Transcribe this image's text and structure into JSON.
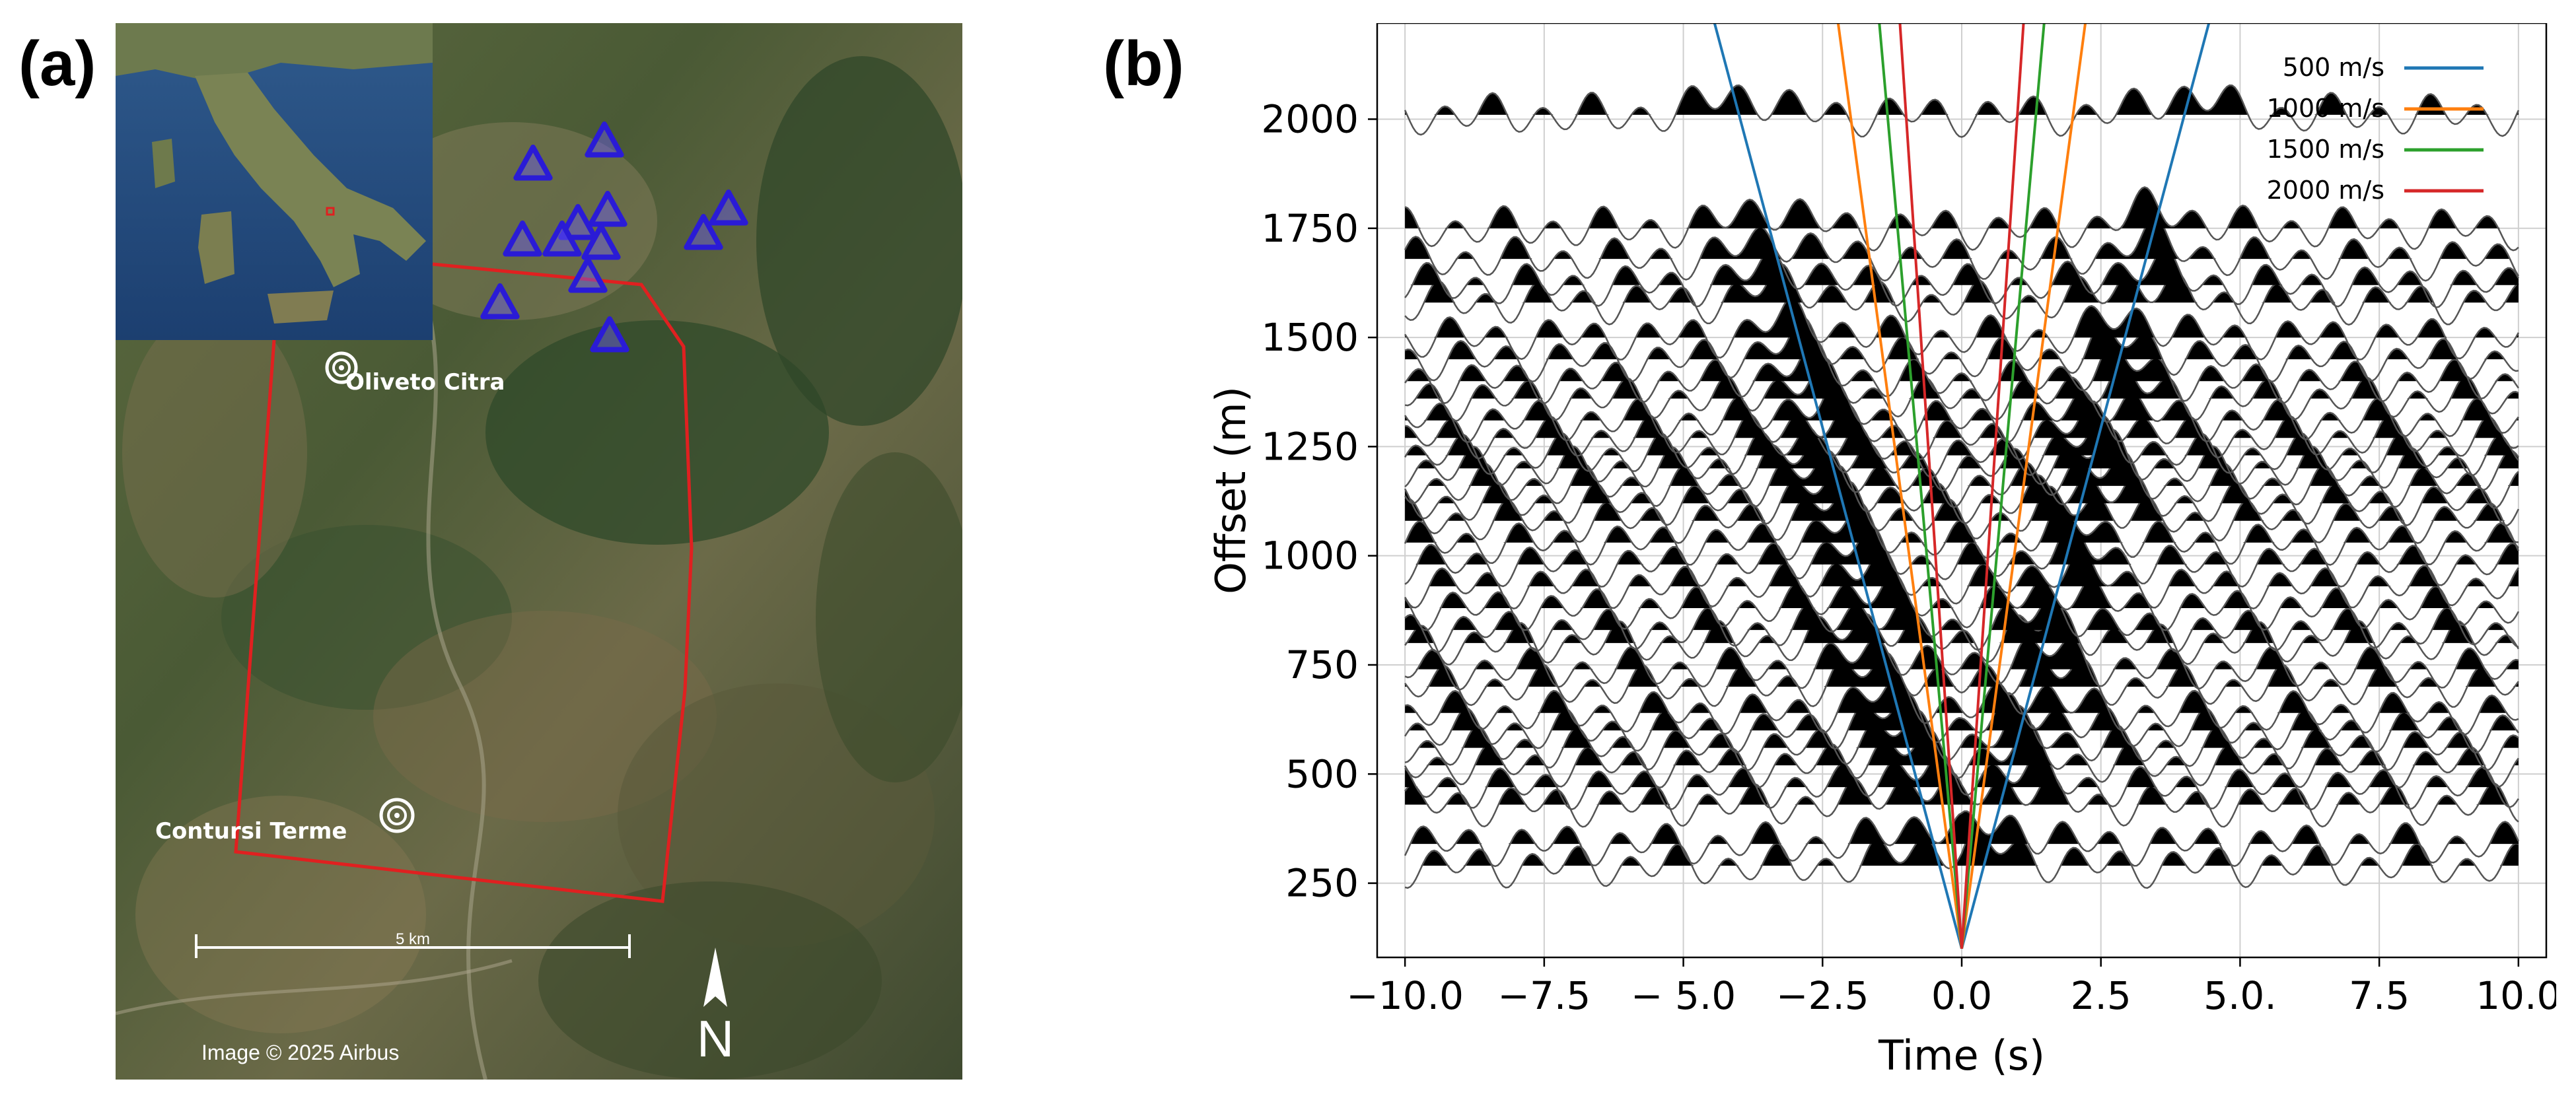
{
  "panel_a": {
    "label": "(a)",
    "town_1": "Oliveto Citra",
    "town_2": "Contursi Terme",
    "scale_bar_label": "5 km",
    "credit": "Image © 2025 Airbus",
    "north_label": "N",
    "colors": {
      "study_area_outline": "#e02020",
      "station_marker": "#2a1bd6",
      "station_fill": "#6b5cf0"
    },
    "station_count": 12,
    "icons": {
      "station": "triangle-icon",
      "town": "target-icon",
      "north": "north-arrow-icon"
    }
  },
  "panel_b": {
    "label": "(b)",
    "chart_data": {
      "type": "line",
      "xlabel": "Time (s)",
      "ylabel": "Offset (m)",
      "xlim": [
        -10.5,
        10.5
      ],
      "ylim": [
        80,
        2220
      ],
      "xticks": [
        {
          "value": -10,
          "label": "−10.0"
        },
        {
          "value": -7.5,
          "label": "−7.5"
        },
        {
          "value": -5,
          "label": "− 5.0"
        },
        {
          "value": -2.5,
          "label": "−2.5"
        },
        {
          "value": 0,
          "label": "0.0"
        },
        {
          "value": 2.5,
          "label": "2.5"
        },
        {
          "value": 5,
          "label": "5.0."
        },
        {
          "value": 7.5,
          "label": "7.5"
        },
        {
          "value": 10,
          "label": "10.0"
        }
      ],
      "yticks": [
        250,
        500,
        750,
        1000,
        1250,
        1500,
        1750,
        2000
      ],
      "grid": true,
      "legend_position": "top-right",
      "series": [
        {
          "name": "500 m/s",
          "velocity": 500,
          "color": "#1f77b4"
        },
        {
          "name": "1000 m/s",
          "velocity": 1000,
          "color": "#ff7f0e"
        },
        {
          "name": "1500 m/s",
          "velocity": 1500,
          "color": "#2ca02c"
        },
        {
          "name": "2000 m/s",
          "velocity": 2000,
          "color": "#d62728"
        }
      ],
      "trace_offsets": [
        290,
        340,
        430,
        470,
        520,
        560,
        600,
        640,
        700,
        740,
        800,
        830,
        880,
        930,
        980,
        1030,
        1080,
        1120,
        1160,
        1200,
        1230,
        1270,
        1310,
        1360,
        1400,
        1450,
        1500,
        1580,
        1620,
        1680,
        1750,
        2010
      ]
    }
  }
}
